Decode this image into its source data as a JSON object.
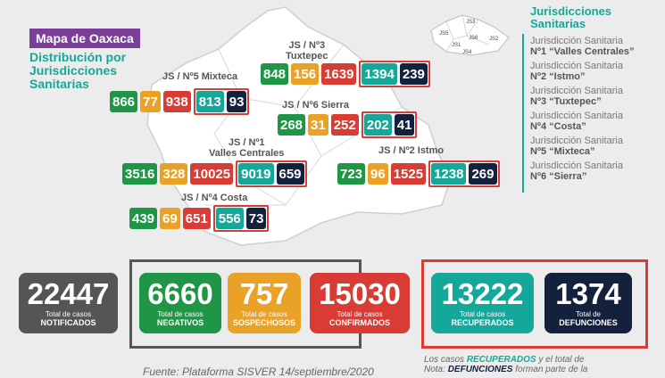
{
  "title": "Mapa de Oaxaca",
  "subtitle": [
    "Distribución por",
    "Jurisdicciones",
    "Sanitarias"
  ],
  "colors": {
    "green": "#1f9646",
    "yellow": "#e9a126",
    "red": "#d83c34",
    "teal": "#16a79b",
    "navy": "#14213d"
  },
  "inset_labels": [
    "JS5",
    "JS3",
    "JS1",
    "JS6",
    "JS2",
    "JS4"
  ],
  "jurisdictions": [
    {
      "label": [
        "JS / Nº3",
        "Tuxtepec"
      ],
      "values": [
        "848",
        "156",
        "1639",
        "1394",
        "239"
      ]
    },
    {
      "label": [
        "JS / Nº5 Mixteca"
      ],
      "values": [
        "866",
        "77",
        "938",
        "813",
        "93"
      ]
    },
    {
      "label": [
        "JS / Nº6 Sierra"
      ],
      "values": [
        "268",
        "31",
        "252",
        "202",
        "41"
      ]
    },
    {
      "label": [
        "JS / Nº1",
        "Valles Centrales"
      ],
      "values": [
        "3516",
        "328",
        "10025",
        "9019",
        "659"
      ]
    },
    {
      "label": [
        "JS / Nº2 Istmo"
      ],
      "values": [
        "723",
        "96",
        "1525",
        "1238",
        "269"
      ]
    },
    {
      "label": [
        "JS / Nº4 Costa"
      ],
      "values": [
        "439",
        "69",
        "651",
        "556",
        "73"
      ]
    }
  ],
  "legend": {
    "title": [
      "Jurisdicciones",
      "Sanitarias"
    ],
    "items": [
      [
        "Jurisdicción Sanitaria",
        "Nº1 “Valles Centrales”"
      ],
      [
        "Jurisdicción Sanitaria",
        "Nº2 “Istmo”"
      ],
      [
        "Jurisdicción Sanitaria",
        "Nº3 “Tuxtepec”"
      ],
      [
        "Jurisdicción Sanitaria",
        "Nº4 “Costa”"
      ],
      [
        "Jurisdicción Sanitaria",
        "Nº5 “Mixteca”"
      ],
      [
        "Jurisdicción Sanitaria",
        "Nº6 “Sierra”"
      ]
    ]
  },
  "totals": [
    {
      "num": "22447",
      "l1": "Total de casos",
      "l2": "NOTIFICADOS",
      "color": "#555555"
    },
    {
      "num": "6660",
      "l1": "Total de casos",
      "l2": "NEGATIVOS",
      "color": "#1f9646"
    },
    {
      "num": "757",
      "l1": "Total de casos",
      "l2": "SOSPECHOSOS",
      "color": "#e9a126"
    },
    {
      "num": "15030",
      "l1": "Total de casos",
      "l2": "CONFIRMADOS",
      "color": "#d83c34"
    },
    {
      "num": "13222",
      "l1": "Total de casos",
      "l2": "RECUPERADOS",
      "color": "#16a79b"
    },
    {
      "num": "1374",
      "l1": "Total de",
      "l2": "DEFUNCIONES",
      "color": "#14213d"
    }
  ],
  "source": "Fuente: Plataforma SISVER 14/septiembre/2020",
  "note": {
    "l1a": "Los casos ",
    "recuperados": "RECUPERADOS",
    "l1b": " y el total de",
    "l2a": "Nota: ",
    "defunciones": "DEFUNCIONES",
    "l2b": " forman parte de la"
  }
}
